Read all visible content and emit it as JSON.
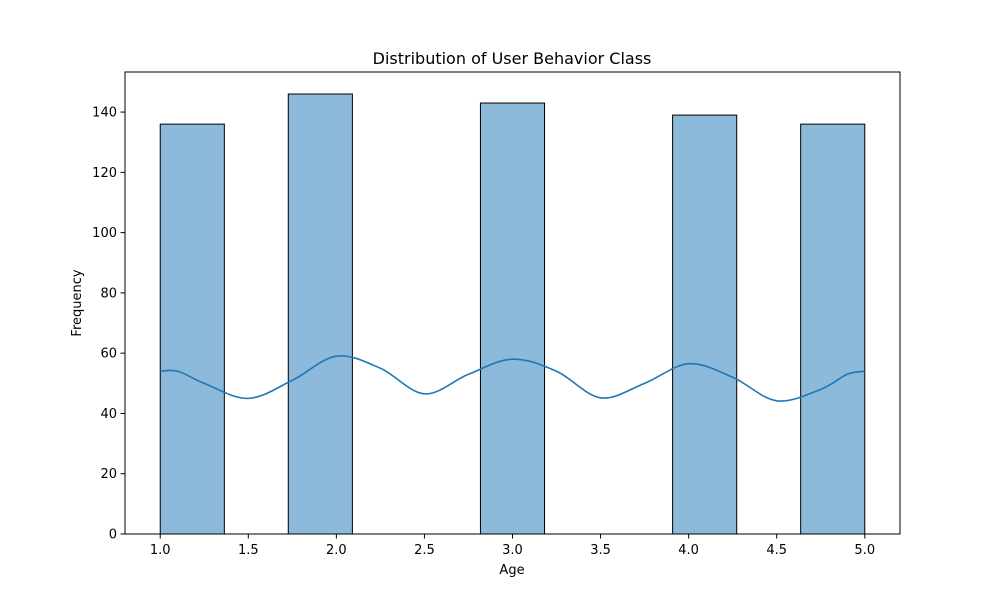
{
  "chart_data": {
    "type": "bar",
    "title": "Distribution of User Behavior Class",
    "xlabel": "Age",
    "ylabel": "Frequency",
    "xlim": [
      0.8,
      5.2
    ],
    "ylim": [
      0,
      153.3
    ],
    "xticks": [
      1.0,
      1.5,
      2.0,
      2.5,
      3.0,
      3.5,
      4.0,
      4.5,
      5.0
    ],
    "xtick_labels": [
      "1.0",
      "1.5",
      "2.0",
      "2.5",
      "3.0",
      "3.5",
      "4.0",
      "4.5",
      "5.0"
    ],
    "yticks": [
      0,
      20,
      40,
      60,
      80,
      100,
      120,
      140
    ],
    "ytick_labels": [
      "0",
      "20",
      "40",
      "60",
      "80",
      "100",
      "120",
      "140"
    ],
    "bins": [
      {
        "x0": 1.0,
        "x1": 1.364,
        "value": 136
      },
      {
        "x0": 1.727,
        "x1": 2.091,
        "value": 146
      },
      {
        "x0": 2.818,
        "x1": 3.182,
        "value": 143
      },
      {
        "x0": 3.909,
        "x1": 4.273,
        "value": 139
      },
      {
        "x0": 4.636,
        "x1": 5.0,
        "value": 136
      }
    ],
    "kde": {
      "x": [
        1.0,
        1.1,
        1.25,
        1.5,
        1.75,
        2.0,
        2.25,
        2.5,
        2.75,
        3.0,
        3.25,
        3.5,
        3.75,
        4.0,
        4.25,
        4.5,
        4.75,
        4.9,
        5.0
      ],
      "y": [
        54,
        54,
        50,
        45,
        51,
        59,
        55,
        46.5,
        53,
        58,
        54,
        45.2,
        50,
        56.5,
        52,
        44.2,
        48,
        53,
        54
      ]
    },
    "grid": false,
    "colors": {
      "bar_fill": "#8db9da",
      "bar_edge": "#000000",
      "kde_line": "#1f77b4",
      "axes": "#000000"
    }
  }
}
